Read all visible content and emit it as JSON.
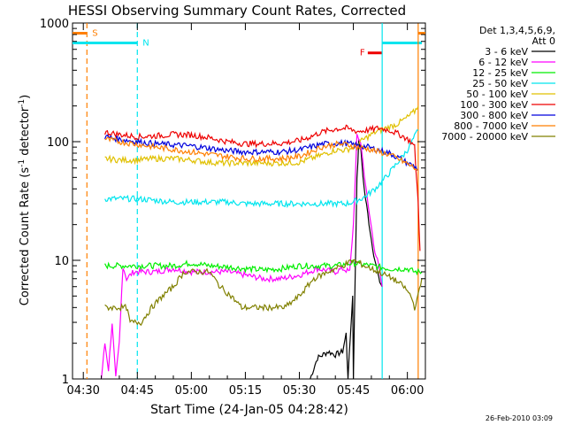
{
  "chart_data": {
    "type": "line",
    "title": "HESSI Observing Summary Count Rates, Corrected",
    "xlabel": "Start Time (24-Jan-05 04:28:42)",
    "ylabel_main": "Corrected Count Rate (s",
    "ylabel_sup1": "-1",
    "ylabel_mid": " detector",
    "ylabel_sup2": "-1",
    "ylabel_end": ")",
    "footer": "26-Feb-2010 03:09",
    "yscale": "log",
    "ylim": [
      1,
      1000
    ],
    "xlim_minutes": [
      -3,
      95
    ],
    "x_ticks": [
      {
        "m": 0,
        "label": "04:30"
      },
      {
        "m": 15,
        "label": "04:45"
      },
      {
        "m": 30,
        "label": "05:00"
      },
      {
        "m": 45,
        "label": "05:15"
      },
      {
        "m": 60,
        "label": "05:30"
      },
      {
        "m": 75,
        "label": "05:45"
      },
      {
        "m": 90,
        "label": "06:00"
      }
    ],
    "y_ticks": [
      {
        "v": 1,
        "label": "1"
      },
      {
        "v": 10,
        "label": "10"
      },
      {
        "v": 100,
        "label": "100"
      },
      {
        "v": 1000,
        "label": "1000"
      }
    ],
    "legend_title1": "Det 1,3,4,5,6,9,",
    "legend_title2": "Att 0",
    "markers": [
      {
        "label": "S",
        "color": "#ff7f00",
        "x_start": -3,
        "x_end": 1,
        "y": 820,
        "vline": 1,
        "dashed": true
      },
      {
        "label": "N",
        "color": "#00e5ee",
        "x_start": -3,
        "x_end": 15,
        "y": 680,
        "vline": 15,
        "dashed": true
      },
      {
        "label": "F",
        "color": "#ee0000",
        "x_start": 79,
        "x_end": 83,
        "y": 560,
        "vline": null,
        "dashed": false
      },
      {
        "label": "",
        "color": "#00e5ee",
        "x_start": 83,
        "x_end": 94,
        "y": 680,
        "vline": 83,
        "dashed": false
      },
      {
        "label": "",
        "color": "#ff7f00",
        "x_start": 93,
        "x_end": 95,
        "y": 820,
        "vline": 93,
        "dashed": false
      }
    ],
    "series": [
      {
        "name": "3 - 6 keV",
        "color": "#000000",
        "points": [
          [
            63,
            1
          ],
          [
            65,
            1.5
          ],
          [
            68,
            1.7
          ],
          [
            70,
            1.6
          ],
          [
            72,
            1.7
          ],
          [
            73,
            2.4
          ],
          [
            73.5,
            1
          ],
          [
            74.8,
            5
          ],
          [
            75,
            1
          ],
          [
            76,
            50
          ],
          [
            76.5,
            100
          ],
          [
            77,
            90
          ],
          [
            78,
            40
          ],
          [
            80,
            15
          ],
          [
            81,
            10
          ],
          [
            82,
            7
          ],
          [
            83,
            6
          ]
        ]
      },
      {
        "name": "6 - 12 keV",
        "color": "#ff00ff",
        "points": [
          [
            5,
            1
          ],
          [
            6,
            2
          ],
          [
            7,
            1.2
          ],
          [
            8,
            3
          ],
          [
            9,
            1
          ],
          [
            10,
            2
          ],
          [
            11,
            9
          ],
          [
            12,
            7
          ],
          [
            14,
            8
          ],
          [
            17,
            8
          ],
          [
            20,
            8
          ],
          [
            25,
            8.5
          ],
          [
            30,
            8
          ],
          [
            35,
            8
          ],
          [
            40,
            8
          ],
          [
            45,
            7.5
          ],
          [
            50,
            7
          ],
          [
            55,
            7
          ],
          [
            60,
            7.5
          ],
          [
            65,
            8.5
          ],
          [
            70,
            8
          ],
          [
            72,
            8.5
          ],
          [
            74,
            8
          ],
          [
            75,
            20
          ],
          [
            76,
            110
          ],
          [
            77,
            100
          ],
          [
            79,
            30
          ],
          [
            81,
            12
          ],
          [
            82,
            9
          ],
          [
            83,
            6
          ]
        ]
      },
      {
        "name": "12 - 25 keV",
        "color": "#00ee00",
        "points": [
          [
            6,
            9
          ],
          [
            10,
            9
          ],
          [
            15,
            9
          ],
          [
            20,
            9
          ],
          [
            25,
            9
          ],
          [
            30,
            9.5
          ],
          [
            35,
            9
          ],
          [
            40,
            8.8
          ],
          [
            45,
            8.5
          ],
          [
            50,
            8.3
          ],
          [
            55,
            8.5
          ],
          [
            60,
            9
          ],
          [
            65,
            9
          ],
          [
            70,
            9
          ],
          [
            75,
            9.5
          ],
          [
            80,
            9
          ],
          [
            85,
            8.5
          ],
          [
            90,
            8.5
          ],
          [
            92,
            8
          ],
          [
            94,
            8
          ]
        ]
      },
      {
        "name": "25 - 50 keV",
        "color": "#00e5ee",
        "points": [
          [
            6,
            33
          ],
          [
            10,
            33
          ],
          [
            15,
            33
          ],
          [
            20,
            32
          ],
          [
            25,
            31
          ],
          [
            30,
            31
          ],
          [
            35,
            31
          ],
          [
            40,
            31
          ],
          [
            45,
            30
          ],
          [
            50,
            30
          ],
          [
            55,
            30
          ],
          [
            60,
            30
          ],
          [
            65,
            30
          ],
          [
            70,
            30
          ],
          [
            73,
            30
          ],
          [
            75,
            31
          ],
          [
            78,
            34
          ],
          [
            81,
            40
          ],
          [
            84,
            50
          ],
          [
            87,
            65
          ],
          [
            90,
            85
          ],
          [
            92,
            110
          ],
          [
            93,
            125
          ]
        ]
      },
      {
        "name": "50 - 100 keV",
        "color": "#e0c000",
        "points": [
          [
            6,
            72
          ],
          [
            10,
            70
          ],
          [
            15,
            70
          ],
          [
            20,
            72
          ],
          [
            25,
            72
          ],
          [
            30,
            70
          ],
          [
            35,
            67
          ],
          [
            40,
            66
          ],
          [
            45,
            66
          ],
          [
            50,
            66
          ],
          [
            55,
            66
          ],
          [
            60,
            67
          ],
          [
            65,
            75
          ],
          [
            70,
            85
          ],
          [
            73,
            85
          ],
          [
            75,
            90
          ],
          [
            78,
            105
          ],
          [
            81,
            120
          ],
          [
            84,
            130
          ],
          [
            87,
            140
          ],
          [
            90,
            160
          ],
          [
            92,
            180
          ],
          [
            93,
            200
          ]
        ]
      },
      {
        "name": "100 - 300 keV",
        "color": "#ee0000",
        "points": [
          [
            6,
            120
          ],
          [
            10,
            115
          ],
          [
            15,
            110
          ],
          [
            20,
            112
          ],
          [
            25,
            115
          ],
          [
            30,
            114
          ],
          [
            35,
            108
          ],
          [
            40,
            100
          ],
          [
            45,
            96
          ],
          [
            50,
            96
          ],
          [
            55,
            97
          ],
          [
            60,
            102
          ],
          [
            63,
            110
          ],
          [
            66,
            120
          ],
          [
            70,
            128
          ],
          [
            73,
            130
          ],
          [
            76,
            122
          ],
          [
            79,
            125
          ],
          [
            82,
            130
          ],
          [
            85,
            125
          ],
          [
            87,
            118
          ],
          [
            89,
            110
          ],
          [
            91,
            100
          ],
          [
            92,
            90
          ],
          [
            93,
            30
          ],
          [
            93.5,
            12
          ]
        ]
      },
      {
        "name": "300 - 800 keV",
        "color": "#0000dd",
        "points": [
          [
            6,
            110
          ],
          [
            10,
            105
          ],
          [
            15,
            100
          ],
          [
            20,
            96
          ],
          [
            25,
            94
          ],
          [
            30,
            92
          ],
          [
            35,
            88
          ],
          [
            40,
            84
          ],
          [
            45,
            82
          ],
          [
            50,
            82
          ],
          [
            55,
            82
          ],
          [
            60,
            85
          ],
          [
            63,
            90
          ],
          [
            66,
            95
          ],
          [
            70,
            97
          ],
          [
            73,
            97
          ],
          [
            76,
            93
          ],
          [
            79,
            90
          ],
          [
            82,
            85
          ],
          [
            85,
            80
          ],
          [
            88,
            72
          ],
          [
            90,
            66
          ],
          [
            92,
            62
          ],
          [
            93,
            58
          ]
        ]
      },
      {
        "name": "800 - 7000 keV",
        "color": "#ff7f00",
        "points": [
          [
            6,
            105
          ],
          [
            10,
            100
          ],
          [
            15,
            95
          ],
          [
            20,
            90
          ],
          [
            25,
            86
          ],
          [
            30,
            82
          ],
          [
            35,
            78
          ],
          [
            40,
            75
          ],
          [
            45,
            72
          ],
          [
            50,
            72
          ],
          [
            55,
            72
          ],
          [
            60,
            75
          ],
          [
            63,
            82
          ],
          [
            66,
            90
          ],
          [
            70,
            95
          ],
          [
            73,
            95
          ],
          [
            76,
            90
          ],
          [
            79,
            87
          ],
          [
            82,
            82
          ],
          [
            85,
            78
          ],
          [
            88,
            70
          ],
          [
            90,
            65
          ],
          [
            92,
            60
          ],
          [
            93,
            58
          ]
        ]
      },
      {
        "name": "7000 - 20000 keV",
        "color": "#808000",
        "points": [
          [
            6,
            4
          ],
          [
            9,
            4
          ],
          [
            12,
            4
          ],
          [
            13,
            3
          ],
          [
            16,
            3
          ],
          [
            19,
            4
          ],
          [
            22,
            5
          ],
          [
            25,
            6
          ],
          [
            28,
            8
          ],
          [
            32,
            8
          ],
          [
            35,
            8
          ],
          [
            38,
            6
          ],
          [
            41,
            5
          ],
          [
            44,
            4
          ],
          [
            48,
            4
          ],
          [
            52,
            4
          ],
          [
            56,
            4
          ],
          [
            60,
            5
          ],
          [
            64,
            7
          ],
          [
            68,
            8
          ],
          [
            72,
            9
          ],
          [
            75,
            10
          ],
          [
            78,
            9
          ],
          [
            82,
            8
          ],
          [
            86,
            7
          ],
          [
            89,
            6
          ],
          [
            91,
            5
          ],
          [
            92,
            4
          ],
          [
            93,
            5
          ],
          [
            94,
            7
          ]
        ]
      }
    ]
  }
}
